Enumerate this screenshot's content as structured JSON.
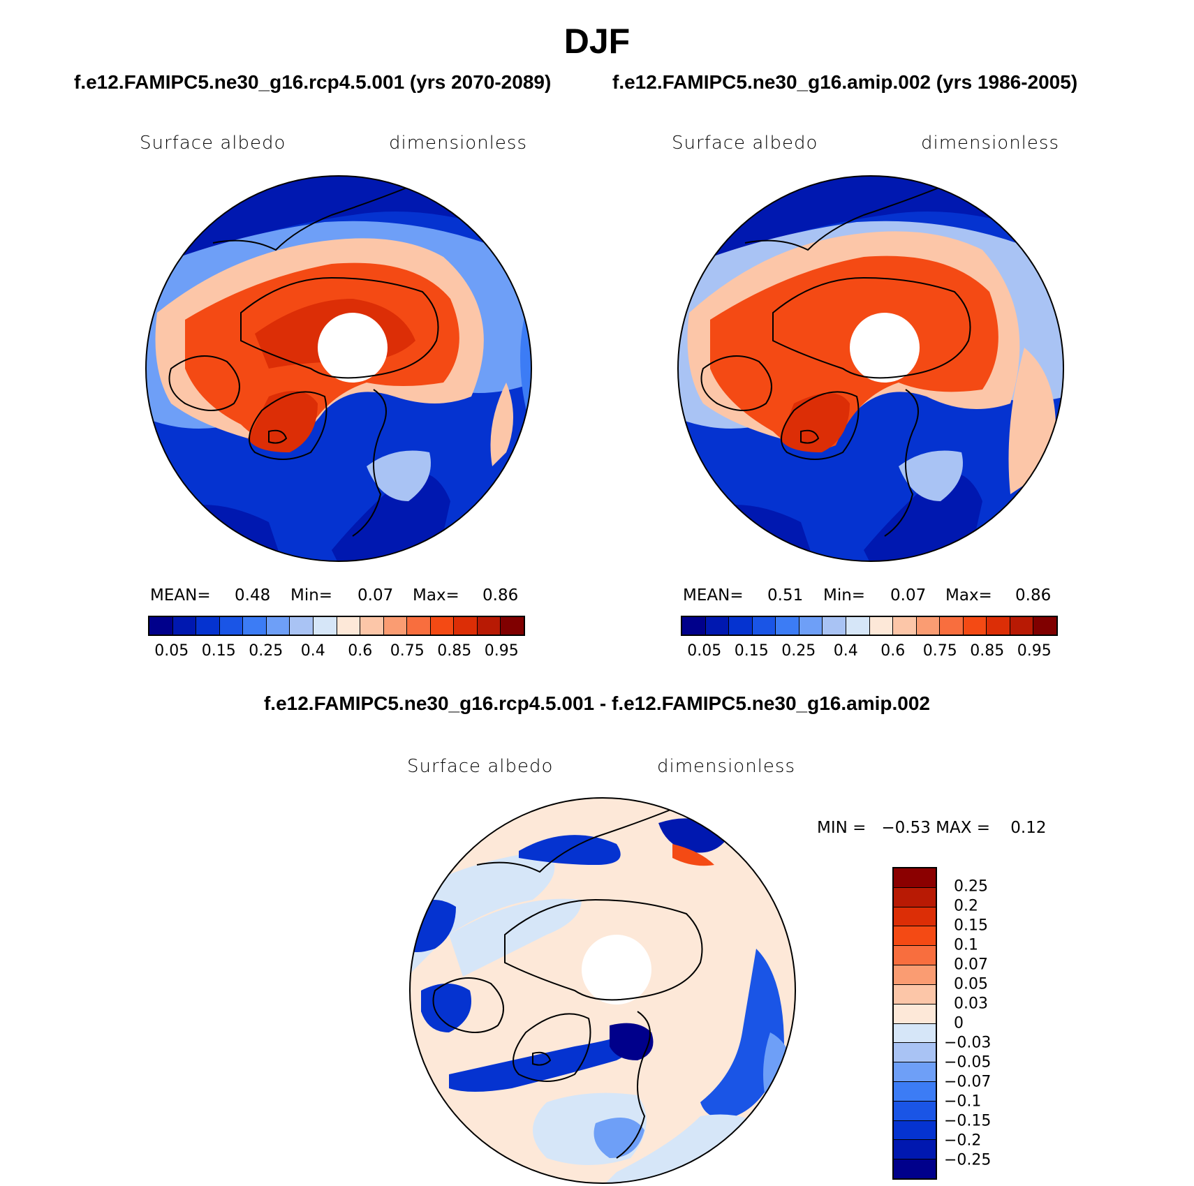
{
  "season": "DJF",
  "panels": [
    {
      "case_title": "f.e12.FAMIPC5.ne30_g16.rcp4.5.001 (yrs 2070-2089)",
      "variable": "Surface albedo",
      "units": "dimensionless",
      "stats": {
        "mean_label": "MEAN=",
        "mean": "0.48",
        "min_label": "Min=",
        "min": "0.07",
        "max_label": "Max=",
        "max": "0.86"
      }
    },
    {
      "case_title": "f.e12.FAMIPC5.ne30_g16.amip.002 (yrs 1986-2005)",
      "variable": "Surface albedo",
      "units": "dimensionless",
      "stats": {
        "mean_label": "MEAN=",
        "mean": "0.51",
        "min_label": "Min=",
        "min": "0.07",
        "max_label": "Max=",
        "max": "0.86"
      }
    }
  ],
  "diff_panel": {
    "title": "f.e12.FAMIPC5.ne30_g16.rcp4.5.001 - f.e12.FAMIPC5.ne30_g16.amip.002",
    "variable": "Surface albedo",
    "units": "dimensionless",
    "min_max_text": "MIN =   −0.53 MAX =    0.12"
  },
  "colorbar_abs": {
    "colors": [
      "#00008b",
      "#0018b0",
      "#0533d0",
      "#1a55e6",
      "#3c7cf5",
      "#6e9ff7",
      "#a9c3f4",
      "#d6e6f8",
      "#fde8d8",
      "#fcc6a8",
      "#fa9c72",
      "#f86e3e",
      "#f44a14",
      "#dc2e06",
      "#b81a04",
      "#800000"
    ],
    "labels": [
      "0.05",
      "0.15",
      "0.25",
      "0.4",
      "0.6",
      "0.75",
      "0.85",
      "0.95"
    ]
  },
  "colorbar_diff": {
    "colors_top_to_bottom": [
      "#8b0000",
      "#b81a04",
      "#dc2e06",
      "#f44a14",
      "#f86e3e",
      "#fa9c72",
      "#fcc6a8",
      "#fde8d8",
      "#d6e6f8",
      "#a9c3f4",
      "#6e9ff7",
      "#3c7cf5",
      "#1a55e6",
      "#0533d0",
      "#0018b0",
      "#00008b"
    ],
    "labels_top_to_bottom": [
      "0.25",
      "0.2",
      "0.15",
      "0.1",
      "0.07",
      "0.05",
      "0.03",
      "0",
      "−0.03",
      "−0.05",
      "−0.07",
      "−0.1",
      "−0.15",
      "−0.2",
      "−0.25"
    ]
  }
}
